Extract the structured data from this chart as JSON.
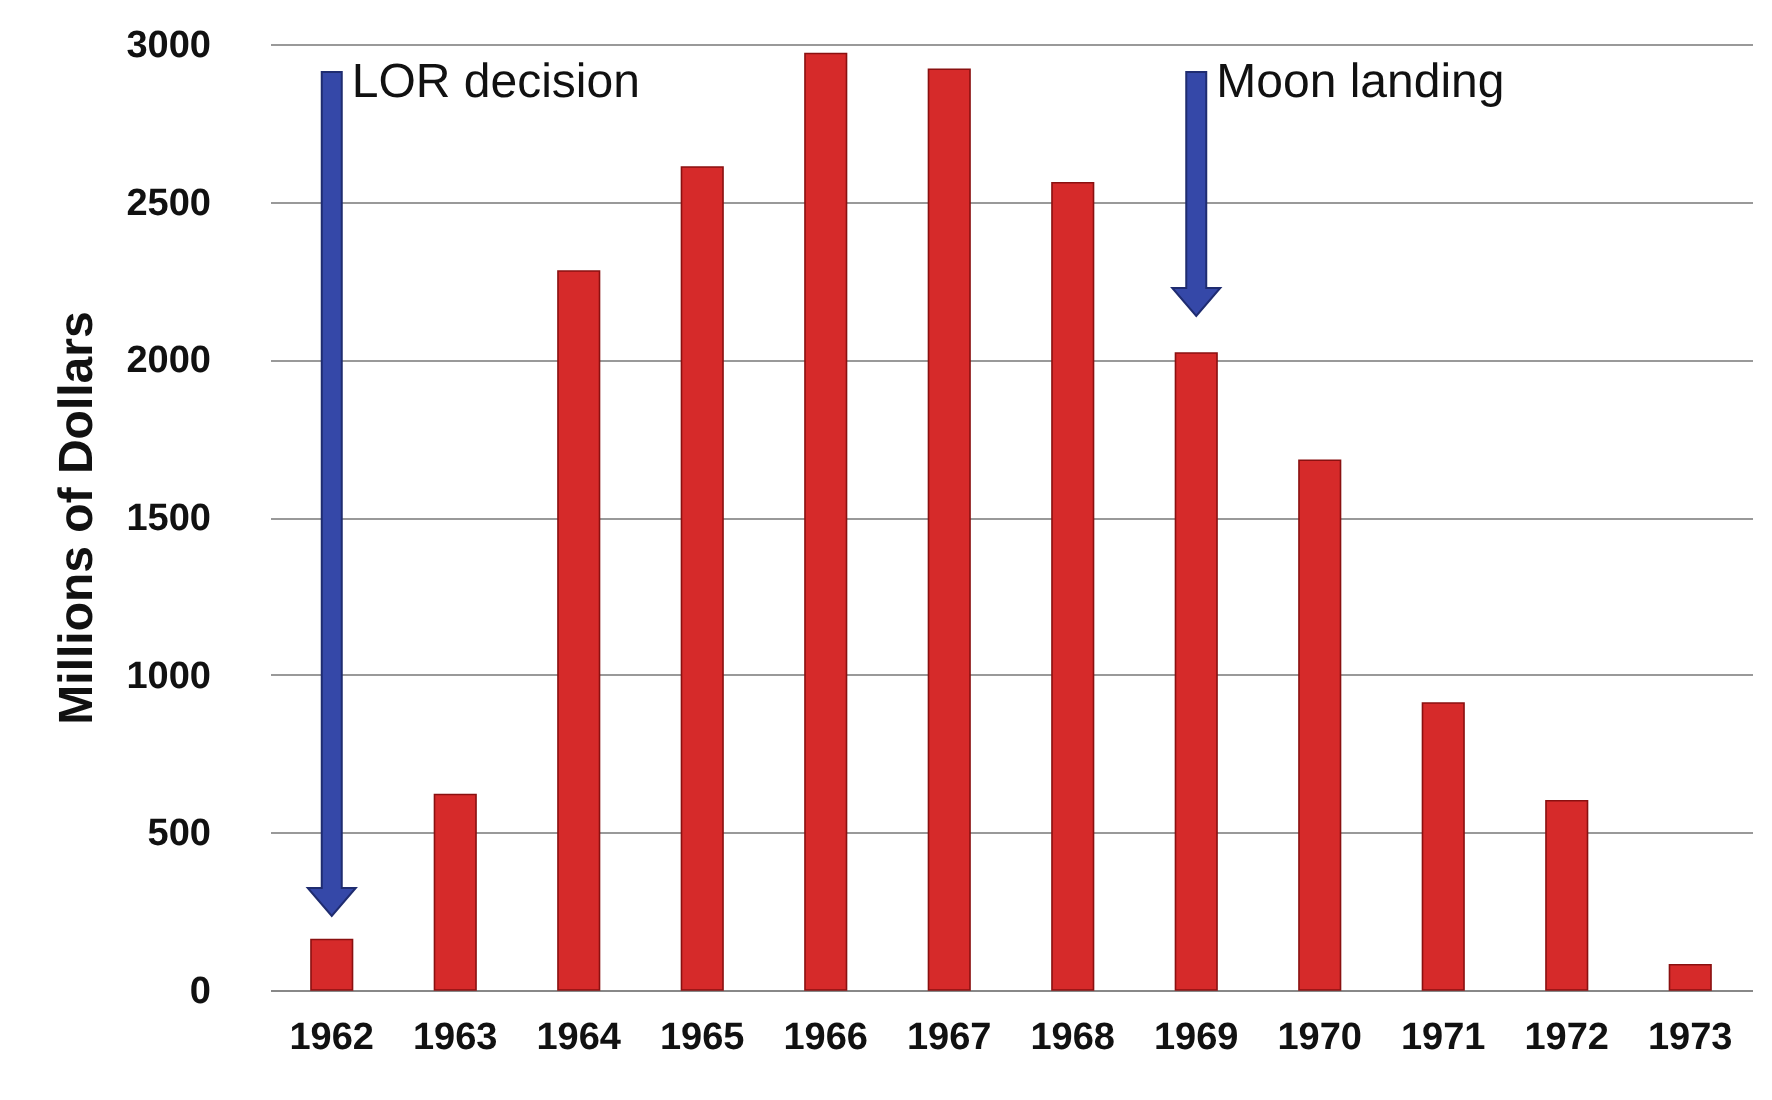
{
  "chart_data": {
    "type": "bar",
    "ylabel": "Millions of Dollars",
    "categories": [
      "1962",
      "1963",
      "1964",
      "1965",
      "1966",
      "1967",
      "1968",
      "1969",
      "1970",
      "1971",
      "1972",
      "1973"
    ],
    "values": [
      160,
      620,
      2280,
      2610,
      2970,
      2920,
      2560,
      2020,
      1680,
      910,
      600,
      80
    ],
    "color": "#d62a2a",
    "ylim": [
      0,
      3000
    ],
    "yticks": [
      0,
      500,
      1000,
      1500,
      2000,
      2500,
      3000
    ],
    "grid": "y",
    "annotations": [
      "LOR decision",
      "Moon landing"
    ]
  }
}
